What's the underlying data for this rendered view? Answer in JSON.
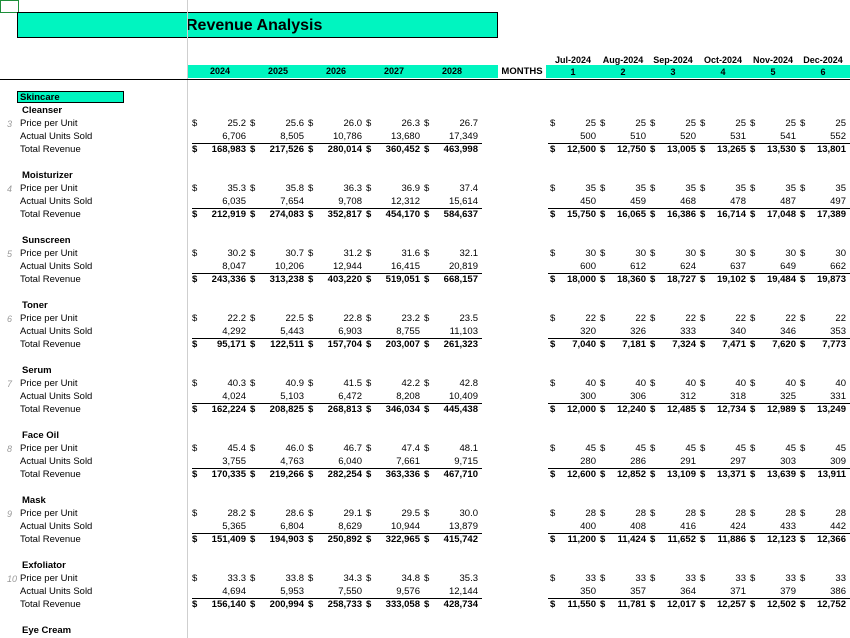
{
  "title": "Revenue Analysis",
  "years": [
    "2024",
    "2025",
    "2026",
    "2027",
    "2028"
  ],
  "months_label": "MONTHS",
  "months": [
    {
      "name": "Jul-2024",
      "idx": "1"
    },
    {
      "name": "Aug-2024",
      "idx": "2"
    },
    {
      "name": "Sep-2024",
      "idx": "3"
    },
    {
      "name": "Oct-2024",
      "idx": "4"
    },
    {
      "name": "Nov-2024",
      "idx": "5"
    },
    {
      "name": "Dec-2024",
      "idx": "6"
    }
  ],
  "category": "Skincare",
  "row_labels": {
    "price": "Price per Unit",
    "units": "Actual Units Sold",
    "revenue": "Total Revenue"
  },
  "currency": "$",
  "products": [
    {
      "name": "Cleanser",
      "num": "3",
      "price": [
        "25.2",
        "25.6",
        "26.0",
        "26.3",
        "26.7"
      ],
      "units": [
        "6,706",
        "8,505",
        "10,786",
        "13,680",
        "17,349"
      ],
      "revenue": [
        "168,983",
        "217,526",
        "280,014",
        "360,452",
        "463,998"
      ],
      "m_price": [
        "25",
        "25",
        "25",
        "25",
        "25",
        "25"
      ],
      "m_units": [
        "500",
        "510",
        "520",
        "531",
        "541",
        "552"
      ],
      "m_revenue": [
        "12,500",
        "12,750",
        "13,005",
        "13,265",
        "13,530",
        "13,801"
      ]
    },
    {
      "name": "Moisturizer",
      "num": "4",
      "price": [
        "35.3",
        "35.8",
        "36.3",
        "36.9",
        "37.4"
      ],
      "units": [
        "6,035",
        "7,654",
        "9,708",
        "12,312",
        "15,614"
      ],
      "revenue": [
        "212,919",
        "274,083",
        "352,817",
        "454,170",
        "584,637"
      ],
      "m_price": [
        "35",
        "35",
        "35",
        "35",
        "35",
        "35"
      ],
      "m_units": [
        "450",
        "459",
        "468",
        "478",
        "487",
        "497"
      ],
      "m_revenue": [
        "15,750",
        "16,065",
        "16,386",
        "16,714",
        "17,048",
        "17,389"
      ]
    },
    {
      "name": "Sunscreen",
      "num": "5",
      "price": [
        "30.2",
        "30.7",
        "31.2",
        "31.6",
        "32.1"
      ],
      "units": [
        "8,047",
        "10,206",
        "12,944",
        "16,415",
        "20,819"
      ],
      "revenue": [
        "243,336",
        "313,238",
        "403,220",
        "519,051",
        "668,157"
      ],
      "m_price": [
        "30",
        "30",
        "30",
        "30",
        "30",
        "30"
      ],
      "m_units": [
        "600",
        "612",
        "624",
        "637",
        "649",
        "662"
      ],
      "m_revenue": [
        "18,000",
        "18,360",
        "18,727",
        "19,102",
        "19,484",
        "19,873"
      ]
    },
    {
      "name": "Toner",
      "num": "6",
      "price": [
        "22.2",
        "22.5",
        "22.8",
        "23.2",
        "23.5"
      ],
      "units": [
        "4,292",
        "5,443",
        "6,903",
        "8,755",
        "11,103"
      ],
      "revenue": [
        "95,171",
        "122,511",
        "157,704",
        "203,007",
        "261,323"
      ],
      "m_price": [
        "22",
        "22",
        "22",
        "22",
        "22",
        "22"
      ],
      "m_units": [
        "320",
        "326",
        "333",
        "340",
        "346",
        "353"
      ],
      "m_revenue": [
        "7,040",
        "7,181",
        "7,324",
        "7,471",
        "7,620",
        "7,773"
      ]
    },
    {
      "name": "Serum",
      "num": "7",
      "price": [
        "40.3",
        "40.9",
        "41.5",
        "42.2",
        "42.8"
      ],
      "units": [
        "4,024",
        "5,103",
        "6,472",
        "8,208",
        "10,409"
      ],
      "revenue": [
        "162,224",
        "208,825",
        "268,813",
        "346,034",
        "445,438"
      ],
      "m_price": [
        "40",
        "40",
        "40",
        "40",
        "40",
        "40"
      ],
      "m_units": [
        "300",
        "306",
        "312",
        "318",
        "325",
        "331"
      ],
      "m_revenue": [
        "12,000",
        "12,240",
        "12,485",
        "12,734",
        "12,989",
        "13,249"
      ]
    },
    {
      "name": "Face Oil",
      "num": "8",
      "price": [
        "45.4",
        "46.0",
        "46.7",
        "47.4",
        "48.1"
      ],
      "units": [
        "3,755",
        "4,763",
        "6,040",
        "7,661",
        "9,715"
      ],
      "revenue": [
        "170,335",
        "219,266",
        "282,254",
        "363,336",
        "467,710"
      ],
      "m_price": [
        "45",
        "45",
        "45",
        "45",
        "45",
        "45"
      ],
      "m_units": [
        "280",
        "286",
        "291",
        "297",
        "303",
        "309"
      ],
      "m_revenue": [
        "12,600",
        "12,852",
        "13,109",
        "13,371",
        "13,639",
        "13,911"
      ]
    },
    {
      "name": "Mask",
      "num": "9",
      "price": [
        "28.2",
        "28.6",
        "29.1",
        "29.5",
        "30.0"
      ],
      "units": [
        "5,365",
        "6,804",
        "8,629",
        "10,944",
        "13,879"
      ],
      "revenue": [
        "151,409",
        "194,903",
        "250,892",
        "322,965",
        "415,742"
      ],
      "m_price": [
        "28",
        "28",
        "28",
        "28",
        "28",
        "28"
      ],
      "m_units": [
        "400",
        "408",
        "416",
        "424",
        "433",
        "442"
      ],
      "m_revenue": [
        "11,200",
        "11,424",
        "11,652",
        "11,886",
        "12,123",
        "12,366"
      ]
    },
    {
      "name": "Exfoliator",
      "num": "10",
      "price": [
        "33.3",
        "33.8",
        "34.3",
        "34.8",
        "35.3"
      ],
      "units": [
        "4,694",
        "5,953",
        "7,550",
        "9,576",
        "12,144"
      ],
      "revenue": [
        "156,140",
        "200,994",
        "258,733",
        "333,058",
        "428,734"
      ],
      "m_price": [
        "33",
        "33",
        "33",
        "33",
        "33",
        "33"
      ],
      "m_units": [
        "350",
        "357",
        "364",
        "371",
        "379",
        "386"
      ],
      "m_revenue": [
        "11,550",
        "11,781",
        "12,017",
        "12,257",
        "12,502",
        "12,752"
      ]
    },
    {
      "name": "Eye Cream",
      "num": "",
      "price": [],
      "units": [],
      "revenue": [],
      "m_price": [],
      "m_units": [],
      "m_revenue": []
    }
  ]
}
